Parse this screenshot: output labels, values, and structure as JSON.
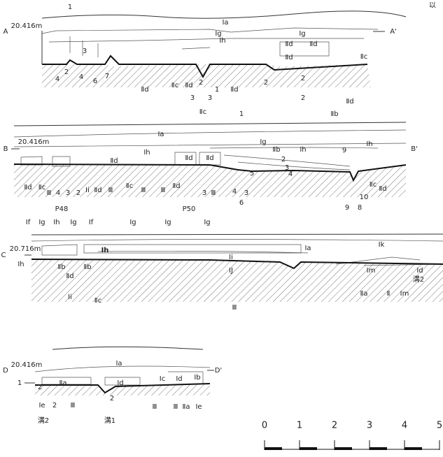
{
  "corner_text": "以",
  "sections": [
    {
      "labels": [
        "A",
        "20.416m",
        "A'",
        "1",
        "Ⅰa",
        "Ⅰg",
        "Ⅰg",
        "Ⅰh",
        "3",
        "Ⅱd",
        "Ⅱd",
        "Ⅱd",
        "2",
        "2",
        "2",
        "4",
        "4",
        "6",
        "7",
        "2",
        "1",
        "3",
        "3",
        "Ⅱd",
        "Ⅱc",
        "Ⅱd",
        "Ⅱd",
        "Ⅱc",
        "Ⅱd",
        "2"
      ]
    },
    {
      "labels": [
        "B",
        "20.416m",
        "B'",
        "Ⅱc",
        "1",
        "Ⅱb",
        "Ⅰa",
        "Ⅰg",
        "Ⅱb",
        "Ⅰh",
        "9",
        "Ⅰh",
        "Ⅰh",
        "2",
        "3",
        "4",
        "5",
        "Ⅱd",
        "Ⅱd",
        "Ⅱd",
        "Ⅱd",
        "Ⅱc",
        "Ⅲ",
        "4",
        "3",
        "2",
        "Ⅰi",
        "Ⅱd",
        "Ⅲ",
        "Ⅱc",
        "Ⅲ",
        "Ⅲ",
        "Ⅱd",
        "3",
        "Ⅲ",
        "4",
        "6",
        "3",
        "9",
        "8",
        "10",
        "Ⅱc",
        "Ⅱd",
        "P48",
        "P50"
      ]
    },
    {
      "labels": [
        "C",
        "20.716m",
        "Ⅰf",
        "Ⅰg",
        "Ⅰh",
        "Ⅰg",
        "Ⅰf",
        "Ⅰg",
        "Ⅰg",
        "Ⅰg",
        "Ⅰh",
        "Ⅰa",
        "Ⅰi",
        "Ⅰk",
        "Ⅰh",
        "Ⅱb",
        "Ⅱb",
        "Ⅱd",
        "ⅠJ",
        "Ⅰm",
        "Ⅰd",
        "溝2",
        "Ⅰi",
        "Ⅱc",
        "Ⅲ",
        "Ⅱa",
        "Ⅱ",
        "Ⅰm"
      ]
    },
    {
      "labels": [
        "D",
        "20.416m",
        "D'",
        "Ⅰa",
        "1",
        "2",
        "Ⅱa",
        "Ⅰd",
        "Ⅰc",
        "Ⅰd",
        "Ⅰb",
        "2",
        "Ⅰe",
        "2",
        "Ⅲ",
        "Ⅲ",
        "Ⅲ",
        "Ⅱa",
        "Ⅰe",
        "溝2",
        "溝1"
      ]
    }
  ],
  "scale": {
    "ticks": [
      0,
      1,
      2,
      3,
      4,
      5
    ]
  }
}
